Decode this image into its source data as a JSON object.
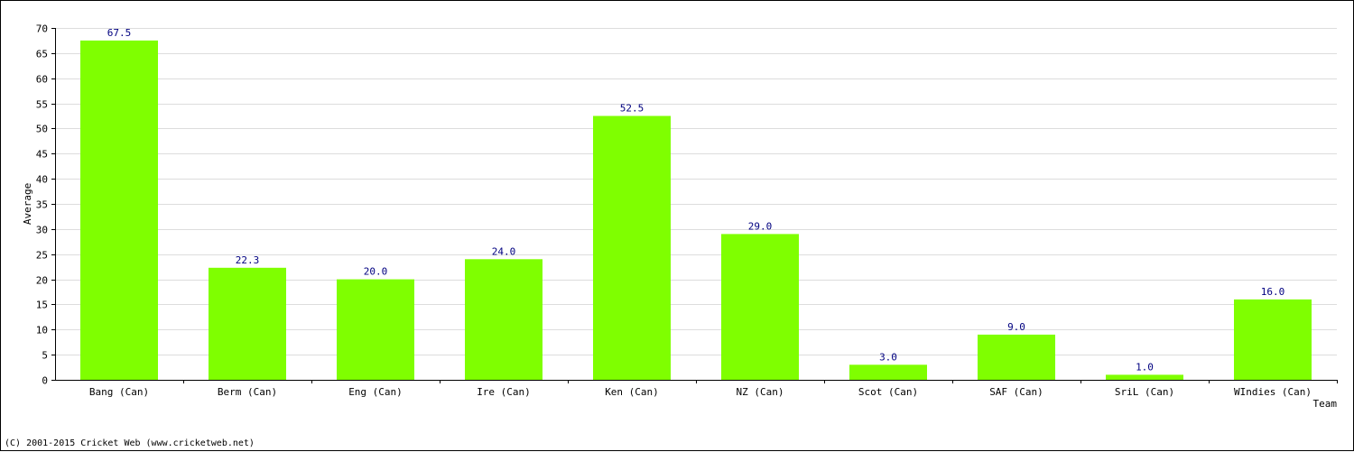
{
  "chart_data": {
    "type": "bar",
    "categories": [
      "Bang (Can)",
      "Berm (Can)",
      "Eng (Can)",
      "Ire (Can)",
      "Ken (Can)",
      "NZ (Can)",
      "Scot (Can)",
      "SAF (Can)",
      "SriL (Can)",
      "WIndies (Can)"
    ],
    "values": [
      67.5,
      22.3,
      20.0,
      24.0,
      52.5,
      29.0,
      3.0,
      9.0,
      1.0,
      16.0
    ],
    "data_labels": [
      "67.5",
      "22.3",
      "20.0",
      "24.0",
      "52.5",
      "29.0",
      "3.0",
      "9.0",
      "1.0",
      "16.0"
    ],
    "xlabel": "Team",
    "ylabel": "Average",
    "ylim": [
      0,
      70
    ],
    "yticks": [
      0,
      5,
      10,
      15,
      20,
      25,
      30,
      35,
      40,
      45,
      50,
      55,
      60,
      65,
      70
    ],
    "grid": true,
    "colors": {
      "bar": "#7fff00",
      "label": "#000080",
      "grid": "#dddddd",
      "axis": "#000000"
    }
  },
  "footer": {
    "copyright": "(C) 2001-2015 Cricket Web (www.cricketweb.net)"
  }
}
